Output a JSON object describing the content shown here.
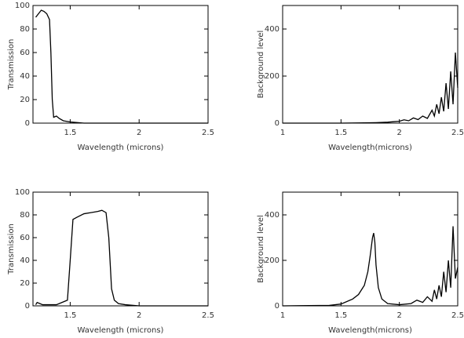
{
  "chart_data": [
    {
      "type": "line",
      "xlabel": "Wavelength (microns)",
      "ylabel": "Transmission",
      "x": [
        1.25,
        1.27,
        1.29,
        1.31,
        1.33,
        1.35,
        1.36,
        1.37,
        1.38,
        1.4,
        1.42,
        1.45,
        1.5,
        1.6,
        2.0,
        2.5
      ],
      "series": [
        {
          "color": "#000000",
          "values": [
            90,
            93,
            96,
            95,
            93,
            88,
            60,
            20,
            5,
            6,
            4,
            2,
            1,
            0,
            0,
            0
          ]
        }
      ],
      "xlim": [
        1.23,
        2.5
      ],
      "xticks": [
        1.5,
        2,
        2.5
      ],
      "ylim": [
        0,
        100
      ],
      "yticks": [
        0,
        20,
        40,
        60,
        80,
        100
      ]
    },
    {
      "type": "line",
      "xlabel": "Wavelength(microns)",
      "ylabel": "Background level",
      "x": [
        1.0,
        1.5,
        1.7,
        1.8,
        1.9,
        1.95,
        2.0,
        2.04,
        2.08,
        2.12,
        2.16,
        2.2,
        2.24,
        2.28,
        2.3,
        2.32,
        2.34,
        2.36,
        2.38,
        2.4,
        2.42,
        2.44,
        2.46,
        2.48,
        2.5
      ],
      "series": [
        {
          "color": "#000000",
          "values": [
            0,
            0,
            1,
            2,
            4,
            6,
            8,
            14,
            10,
            22,
            15,
            30,
            20,
            55,
            30,
            80,
            40,
            110,
            50,
            170,
            60,
            220,
            80,
            300,
            150
          ]
        }
      ],
      "xlim": [
        1,
        2.5
      ],
      "xticks": [
        1,
        1.5,
        2,
        2.5
      ],
      "ylim": [
        0,
        500
      ],
      "yticks": [
        0,
        200,
        400
      ]
    },
    {
      "type": "line",
      "xlabel": "Wavelength (microns)",
      "ylabel": "Transmission",
      "x": [
        1.25,
        1.26,
        1.28,
        1.3,
        1.4,
        1.48,
        1.5,
        1.52,
        1.55,
        1.6,
        1.65,
        1.7,
        1.73,
        1.76,
        1.78,
        1.8,
        1.82,
        1.85,
        1.9,
        2.0,
        2.5
      ],
      "series": [
        {
          "color": "#000000",
          "values": [
            1,
            3,
            2,
            1,
            1,
            5,
            40,
            76,
            78,
            81,
            82,
            83,
            84,
            82,
            60,
            15,
            5,
            2,
            1,
            0,
            0
          ]
        }
      ],
      "xlim": [
        1.23,
        2.5
      ],
      "xticks": [
        1.5,
        2,
        2.5
      ],
      "ylim": [
        0,
        100
      ],
      "yticks": [
        0,
        20,
        40,
        60,
        80,
        100
      ]
    },
    {
      "type": "line",
      "xlabel": "Wavelength(microns)",
      "ylabel": "Background level",
      "x": [
        1.0,
        1.4,
        1.5,
        1.6,
        1.65,
        1.7,
        1.73,
        1.75,
        1.77,
        1.78,
        1.79,
        1.8,
        1.82,
        1.85,
        1.9,
        2.0,
        2.1,
        2.15,
        2.2,
        2.24,
        2.28,
        2.3,
        2.32,
        2.34,
        2.36,
        2.38,
        2.4,
        2.42,
        2.44,
        2.46,
        2.48,
        2.5
      ],
      "series": [
        {
          "color": "#000000",
          "values": [
            0,
            2,
            8,
            30,
            50,
            90,
            150,
            220,
            300,
            320,
            280,
            180,
            80,
            30,
            10,
            5,
            10,
            25,
            15,
            40,
            20,
            70,
            30,
            90,
            40,
            150,
            60,
            200,
            80,
            350,
            120,
            170
          ]
        }
      ],
      "xlim": [
        1,
        2.5
      ],
      "xticks": [
        1,
        1.5,
        2,
        2.5
      ],
      "ylim": [
        0,
        500
      ],
      "yticks": [
        0,
        200,
        400
      ]
    }
  ]
}
